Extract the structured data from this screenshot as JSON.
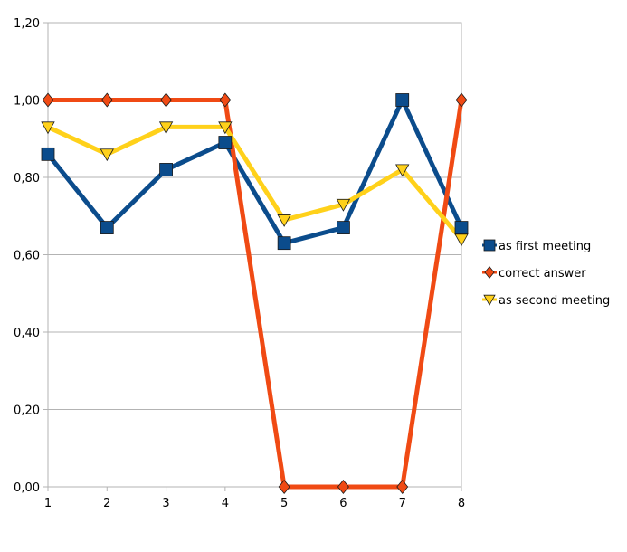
{
  "chart_data": {
    "type": "line",
    "categories": [
      "1",
      "2",
      "3",
      "4",
      "5",
      "6",
      "7",
      "8"
    ],
    "ylim": [
      0,
      1.2
    ],
    "yticks": [
      "0,00",
      "0,20",
      "0,40",
      "0,60",
      "0,80",
      "1,00",
      "1,20"
    ],
    "grid": true,
    "legend_position": "right",
    "series": [
      {
        "name": "as first meeting",
        "color": "#0b4c8c",
        "marker": "square",
        "values": [
          0.86,
          0.67,
          0.82,
          0.89,
          0.63,
          0.67,
          1.0,
          0.67
        ]
      },
      {
        "name": "correct answer",
        "color": "#f04a14",
        "marker": "diamond",
        "values": [
          1.0,
          1.0,
          1.0,
          1.0,
          0.0,
          0.0,
          0.0,
          1.0
        ]
      },
      {
        "name": "as second meeting",
        "color": "#ffd11a",
        "marker": "triangle-down",
        "values": [
          0.93,
          0.86,
          0.93,
          0.93,
          0.69,
          0.73,
          0.82,
          0.64
        ]
      }
    ]
  }
}
